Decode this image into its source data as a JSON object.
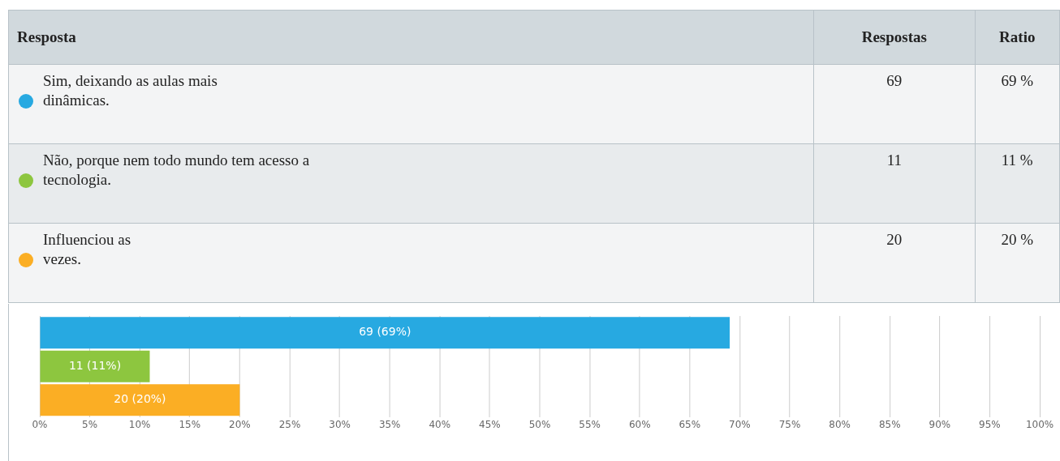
{
  "chart_data": {
    "type": "bar",
    "orientation": "horizontal",
    "categories": [
      null,
      null,
      null
    ],
    "values": [
      69,
      11,
      20
    ],
    "colors": [
      "#27a9e1",
      "#8dc63f",
      "#fbae24"
    ],
    "value_labels": [
      "69 (69%)",
      "11 (11%)",
      "20 (20%)"
    ],
    "annotations": [
      "Resposta",
      "Respostas",
      "Ratio",
      "Sim, deixando as aulas mais\ndinâmicas.",
      "69",
      "69 %",
      "Não, porque nem todo mundo tem acesso a\ntecnologia.",
      "11",
      "11 %",
      "Influenciou as\nvezes.",
      "20",
      "20 %"
    ],
    "xlim": [
      0,
      100
    ],
    "xticks": [
      {
        "value": 0,
        "label": "0%"
      },
      {
        "value": 5,
        "label": "5%"
      },
      {
        "value": 10,
        "label": "10%"
      },
      {
        "value": 15,
        "label": "15%"
      },
      {
        "value": 20,
        "label": "20%"
      },
      {
        "value": 25,
        "label": "25%"
      },
      {
        "value": 30,
        "label": "30%"
      },
      {
        "value": 35,
        "label": "35%"
      },
      {
        "value": 40,
        "label": "40%"
      },
      {
        "value": 45,
        "label": "45%"
      },
      {
        "value": 50,
        "label": "50%"
      },
      {
        "value": 55,
        "label": "55%"
      },
      {
        "value": 60,
        "label": "60%"
      },
      {
        "value": 65,
        "label": "65%"
      },
      {
        "value": 70,
        "label": "70%"
      },
      {
        "value": 75,
        "label": "75%"
      },
      {
        "value": 80,
        "label": "80%"
      },
      {
        "value": 85,
        "label": "85%"
      },
      {
        "value": 90,
        "label": "90%"
      },
      {
        "value": 95,
        "label": "95%"
      },
      {
        "value": 100,
        "label": "100%"
      }
    ],
    "grid": "x",
    "legend": false,
    "tick_labels": "x"
  }
}
